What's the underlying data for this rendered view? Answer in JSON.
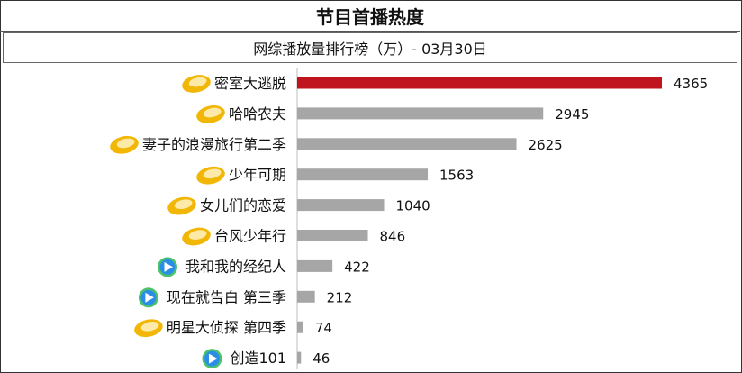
{
  "header": {
    "title": "节目首播热度",
    "subtitle": "网综播放量排行榜（万）- 03月30日"
  },
  "colors": {
    "highlight_bar": "#c0141e",
    "bar": "#a6a6a6",
    "mango_icon_outer": "#f2b705",
    "mango_icon_inner": "#fde9a8",
    "video_icon_blue": "#2a8ee6",
    "video_icon_green": "#4cc36a"
  },
  "chart_data": {
    "type": "bar",
    "orientation": "horizontal",
    "title": "网综播放量排行榜（万）- 03月30日",
    "categories": [
      "密室大逃脱",
      "哈哈农夫",
      "妻子的浪漫旅行第二季",
      "少年可期",
      "女儿们的恋爱",
      "台风少年行",
      "我和我的经纪人",
      "现在就告白 第三季",
      "明星大侦探 第四季",
      "创造101"
    ],
    "values": [
      4365,
      2945,
      2625,
      1563,
      1040,
      846,
      422,
      212,
      74,
      46
    ],
    "icons": [
      "mango-icon",
      "mango-icon",
      "mango-icon",
      "mango-icon",
      "mango-icon",
      "mango-icon",
      "tencent-video-icon",
      "tencent-video-icon",
      "mango-icon",
      "tencent-video-icon"
    ],
    "highlight_index": 0,
    "xlim": [
      0,
      4365
    ],
    "grid": false,
    "legend": "none"
  }
}
